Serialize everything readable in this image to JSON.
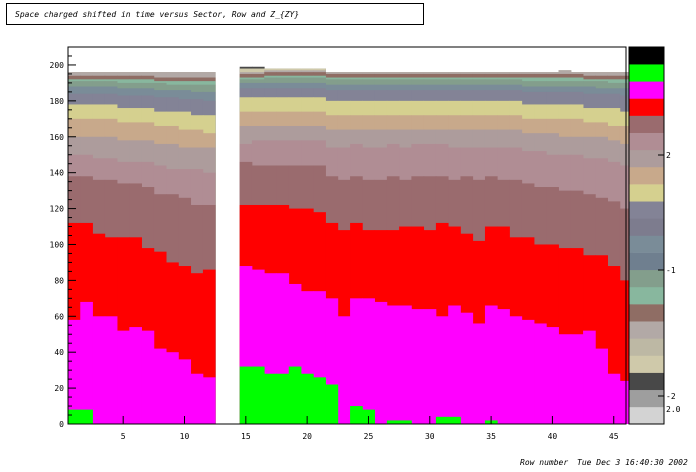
{
  "chart_data": {
    "type": "bar",
    "title": "Space charged shifted in time versus Sector, Row and Z_{ZY}",
    "xlabel": "Row number",
    "timestamp": "Tue Dec  3 16:40:30 2002",
    "xlim": [
      0.5,
      46
    ],
    "ylim": [
      0,
      210
    ],
    "x_ticks": [
      5,
      10,
      15,
      20,
      25,
      30,
      35,
      40,
      45
    ],
    "x_tick_labels": [
      "5",
      "10",
      "15",
      "20",
      "25",
      "30",
      "35",
      "40",
      "45"
    ],
    "y_ticks": [
      20,
      40,
      60,
      80,
      100,
      120,
      140,
      160,
      180,
      200
    ],
    "y_tick_labels": [
      "20",
      "40",
      "60",
      "80",
      "100",
      "120",
      "140",
      "160",
      "180",
      "200"
    ],
    "colorbar_labels": [
      "2",
      "-1",
      "-2",
      "2.0"
    ],
    "palette": [
      "#d3d3d3",
      "#9e9e9e",
      "#484848",
      "#cfc9aa",
      "#bdb8a4",
      "#b2a9a6",
      "#8f6d64",
      "#88b79e",
      "#839e8c",
      "#6f7f8f",
      "#7a8c98",
      "#7d7c8e",
      "#838396",
      "#d5d08f",
      "#c8a98b",
      "#ad9c9c",
      "#b08d94",
      "#9a6b6e",
      "#ff0000",
      "#ff00ff",
      "#00ff00",
      "#000000"
    ],
    "colorbar": [
      "#d3d3d3",
      "#9e9e9e",
      "#484848",
      "#cfc9aa",
      "#bdb8a4",
      "#b2a9a6",
      "#8f6d64",
      "#88b79e",
      "#839e8c",
      "#6f7f8f",
      "#7a8c98",
      "#7d7c8e",
      "#838396",
      "#d5d08f",
      "#c8a98b",
      "#ad9c9c",
      "#b08d94",
      "#9a6b6e",
      "#ff0000",
      "#ff00ff",
      "#00ff00",
      "#000000"
    ],
    "bands": [
      {
        "color": "#00ff00",
        "values": [
          8,
          8,
          0,
          0,
          0,
          0,
          0,
          0,
          0,
          0,
          0,
          0,
          0,
          0,
          32,
          32,
          28,
          28,
          32,
          28,
          26,
          22,
          0,
          10,
          8,
          0,
          2,
          2,
          0,
          0,
          4,
          4,
          0,
          0,
          2,
          0,
          0,
          0,
          0,
          0,
          0,
          0,
          0,
          0,
          0,
          0
        ]
      },
      {
        "color": "#ff00ff",
        "values": [
          58,
          68,
          60,
          60,
          52,
          54,
          52,
          42,
          40,
          36,
          28,
          26,
          0,
          0,
          88,
          86,
          84,
          84,
          78,
          74,
          74,
          70,
          60,
          70,
          70,
          68,
          66,
          66,
          64,
          64,
          60,
          66,
          62,
          56,
          66,
          64,
          60,
          58,
          56,
          54,
          50,
          50,
          52,
          42,
          28,
          24
        ]
      },
      {
        "color": "#ff0000",
        "values": [
          112,
          112,
          106,
          104,
          104,
          104,
          98,
          96,
          90,
          88,
          84,
          86,
          0,
          0,
          122,
          122,
          122,
          122,
          120,
          120,
          118,
          112,
          108,
          112,
          108,
          108,
          108,
          110,
          110,
          108,
          112,
          110,
          106,
          102,
          110,
          110,
          104,
          104,
          100,
          100,
          98,
          98,
          94,
          94,
          88,
          80
        ]
      },
      {
        "color": "#9a6b6e",
        "values": [
          138,
          138,
          136,
          136,
          134,
          134,
          132,
          128,
          128,
          126,
          122,
          122,
          0,
          0,
          146,
          144,
          144,
          144,
          144,
          144,
          144,
          138,
          136,
          138,
          136,
          136,
          138,
          136,
          138,
          138,
          138,
          136,
          138,
          136,
          138,
          136,
          136,
          134,
          132,
          132,
          130,
          130,
          128,
          126,
          124,
          120
        ]
      },
      {
        "color": "#b08d94",
        "values": [
          150,
          150,
          148,
          148,
          146,
          146,
          146,
          144,
          142,
          142,
          142,
          140,
          0,
          0,
          156,
          158,
          158,
          158,
          158,
          158,
          158,
          154,
          154,
          156,
          154,
          154,
          156,
          154,
          156,
          156,
          156,
          154,
          154,
          154,
          154,
          154,
          154,
          152,
          152,
          150,
          150,
          150,
          148,
          148,
          146,
          144
        ]
      },
      {
        "color": "#ad9c9c",
        "values": [
          160,
          160,
          160,
          160,
          158,
          158,
          158,
          156,
          156,
          154,
          154,
          154,
          0,
          0,
          166,
          166,
          166,
          166,
          166,
          166,
          166,
          164,
          164,
          164,
          164,
          164,
          164,
          164,
          164,
          164,
          164,
          164,
          164,
          164,
          164,
          164,
          164,
          162,
          162,
          162,
          160,
          160,
          160,
          160,
          158,
          156
        ]
      },
      {
        "color": "#c8a98b",
        "values": [
          170,
          170,
          170,
          170,
          168,
          168,
          168,
          166,
          166,
          164,
          164,
          162,
          0,
          0,
          174,
          174,
          174,
          174,
          174,
          174,
          174,
          172,
          172,
          172,
          172,
          172,
          172,
          172,
          172,
          172,
          172,
          172,
          172,
          172,
          172,
          172,
          172,
          170,
          170,
          170,
          170,
          170,
          168,
          168,
          166,
          166
        ]
      },
      {
        "color": "#d5d08f",
        "values": [
          178,
          178,
          178,
          178,
          176,
          176,
          176,
          174,
          174,
          174,
          172,
          172,
          0,
          0,
          182,
          182,
          182,
          182,
          182,
          182,
          182,
          180,
          180,
          180,
          180,
          180,
          180,
          180,
          180,
          180,
          180,
          180,
          180,
          180,
          180,
          180,
          180,
          178,
          178,
          178,
          178,
          178,
          176,
          176,
          176,
          174
        ]
      },
      {
        "color": "#838396",
        "values": [
          184,
          184,
          184,
          184,
          183,
          183,
          183,
          182,
          182,
          181,
          181,
          180,
          0,
          0,
          187,
          187,
          187,
          187,
          187,
          187,
          187,
          186,
          186,
          186,
          186,
          186,
          186,
          186,
          186,
          186,
          186,
          186,
          186,
          186,
          186,
          186,
          186,
          185,
          185,
          185,
          185,
          185,
          184,
          184,
          184,
          183
        ]
      },
      {
        "color": "#7a8c98",
        "values": [
          188,
          188,
          188,
          188,
          187,
          187,
          187,
          186,
          186,
          186,
          185,
          185,
          0,
          0,
          190,
          190,
          190,
          190,
          190,
          190,
          190,
          189,
          189,
          189,
          189,
          189,
          189,
          189,
          189,
          189,
          189,
          189,
          189,
          189,
          189,
          189,
          189,
          188,
          188,
          188,
          188,
          188,
          188,
          187,
          187,
          187
        ]
      },
      {
        "color": "#839e8c",
        "values": [
          191,
          191,
          191,
          191,
          190,
          190,
          190,
          190,
          189,
          189,
          189,
          189,
          0,
          0,
          192,
          192,
          193,
          193,
          193,
          193,
          193,
          192,
          192,
          192,
          192,
          192,
          192,
          192,
          192,
          192,
          192,
          192,
          192,
          192,
          192,
          192,
          192,
          191,
          191,
          191,
          191,
          191,
          191,
          191,
          190,
          190
        ]
      },
      {
        "color": "#88b79e",
        "values": [
          192,
          192,
          192,
          192,
          192,
          192,
          192,
          191,
          191,
          191,
          191,
          191,
          0,
          0,
          193,
          193,
          194,
          194,
          194,
          194,
          194,
          193,
          193,
          193,
          193,
          193,
          193,
          193,
          193,
          193,
          193,
          193,
          193,
          193,
          193,
          193,
          193,
          193,
          193,
          193,
          193,
          193,
          192,
          192,
          192,
          192
        ]
      },
      {
        "color": "#8f6d64",
        "values": [
          194,
          194,
          194,
          194,
          194,
          194,
          194,
          193,
          193,
          193,
          193,
          193,
          0,
          0,
          195,
          195,
          196,
          196,
          196,
          196,
          196,
          195,
          195,
          195,
          195,
          195,
          195,
          195,
          195,
          195,
          195,
          195,
          195,
          195,
          195,
          195,
          195,
          195,
          195,
          195,
          195,
          195,
          194,
          194,
          194,
          194
        ]
      },
      {
        "color": "#b2a9a6",
        "values": [
          196,
          196,
          196,
          196,
          196,
          196,
          196,
          196,
          196,
          196,
          196,
          196,
          0,
          0,
          196,
          196,
          197,
          197,
          197,
          197,
          197,
          196,
          196,
          196,
          196,
          196,
          196,
          196,
          196,
          196,
          196,
          196,
          196,
          196,
          196,
          196,
          196,
          196,
          196,
          196,
          197,
          196,
          196,
          196,
          196,
          196
        ]
      },
      {
        "color": "#cfc9aa",
        "values": [
          196,
          196,
          196,
          196,
          196,
          196,
          196,
          196,
          196,
          196,
          196,
          196,
          0,
          0,
          198,
          198,
          198,
          198,
          198,
          198,
          198,
          196,
          196,
          196,
          196,
          196,
          196,
          196,
          196,
          196,
          196,
          196,
          196,
          196,
          196,
          196,
          196,
          196,
          196,
          196,
          197,
          196,
          196,
          196,
          196,
          196
        ]
      },
      {
        "color": "#484848",
        "values": [
          196,
          196,
          196,
          196,
          196,
          196,
          196,
          196,
          196,
          196,
          196,
          196,
          0,
          0,
          199,
          199,
          198,
          198,
          198,
          198,
          198,
          196,
          196,
          196,
          196,
          196,
          196,
          196,
          196,
          196,
          196,
          196,
          196,
          196,
          196,
          196,
          196,
          196,
          196,
          196,
          197,
          196,
          196,
          196,
          196,
          196
        ]
      }
    ]
  }
}
